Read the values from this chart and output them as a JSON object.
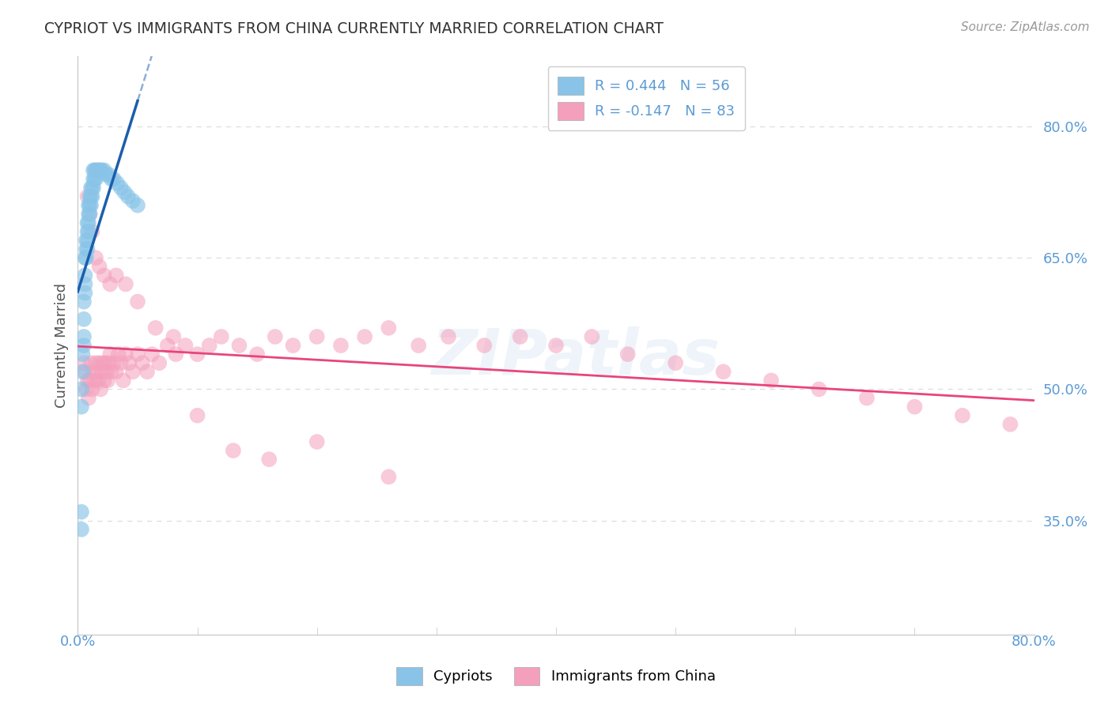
{
  "title": "CYPRIOT VS IMMIGRANTS FROM CHINA CURRENTLY MARRIED CORRELATION CHART",
  "source": "Source: ZipAtlas.com",
  "ylabel": "Currently Married",
  "watermark": "ZIPatlas",
  "xlim": [
    0.0,
    0.8
  ],
  "ylim": [
    0.22,
    0.88
  ],
  "yticks": [
    0.35,
    0.5,
    0.65,
    0.8
  ],
  "ytick_labels": [
    "35.0%",
    "50.0%",
    "65.0%",
    "80.0%"
  ],
  "xtick_positions": [
    0.0,
    0.1,
    0.2,
    0.3,
    0.4,
    0.5,
    0.6,
    0.7,
    0.8
  ],
  "legend_blue_r": "R = 0.444",
  "legend_blue_n": "N = 56",
  "legend_pink_r": "R = -0.147",
  "legend_pink_n": "N = 83",
  "blue_color": "#89C4E8",
  "pink_color": "#F4A0BC",
  "trend_blue_color": "#1B5EAB",
  "trend_pink_color": "#E8457A",
  "grid_color": "#DDDDDD",
  "spine_color": "#CCCCCC",
  "tick_label_color": "#5B9BD5",
  "title_color": "#333333",
  "ylabel_color": "#555555",
  "source_color": "#999999",
  "blue_x": [
    0.003,
    0.003,
    0.004,
    0.004,
    0.005,
    0.005,
    0.005,
    0.005,
    0.006,
    0.006,
    0.006,
    0.006,
    0.007,
    0.007,
    0.007,
    0.008,
    0.008,
    0.008,
    0.008,
    0.009,
    0.009,
    0.009,
    0.009,
    0.01,
    0.01,
    0.01,
    0.011,
    0.011,
    0.011,
    0.012,
    0.012,
    0.013,
    0.013,
    0.013,
    0.014,
    0.014,
    0.015,
    0.015,
    0.016,
    0.017,
    0.018,
    0.019,
    0.02,
    0.022,
    0.024,
    0.026,
    0.028,
    0.03,
    0.033,
    0.036,
    0.039,
    0.042,
    0.046,
    0.05,
    0.003,
    0.003
  ],
  "blue_y": [
    0.48,
    0.5,
    0.52,
    0.54,
    0.55,
    0.56,
    0.58,
    0.6,
    0.61,
    0.62,
    0.63,
    0.65,
    0.65,
    0.66,
    0.67,
    0.66,
    0.67,
    0.68,
    0.69,
    0.68,
    0.69,
    0.7,
    0.71,
    0.7,
    0.71,
    0.72,
    0.71,
    0.72,
    0.73,
    0.72,
    0.73,
    0.73,
    0.74,
    0.75,
    0.74,
    0.75,
    0.74,
    0.75,
    0.75,
    0.75,
    0.75,
    0.75,
    0.75,
    0.75,
    0.745,
    0.745,
    0.74,
    0.74,
    0.735,
    0.73,
    0.725,
    0.72,
    0.715,
    0.71,
    0.36,
    0.34
  ],
  "pink_x": [
    0.005,
    0.006,
    0.007,
    0.008,
    0.009,
    0.01,
    0.011,
    0.012,
    0.013,
    0.014,
    0.015,
    0.016,
    0.017,
    0.018,
    0.019,
    0.02,
    0.021,
    0.022,
    0.023,
    0.024,
    0.025,
    0.026,
    0.027,
    0.028,
    0.03,
    0.032,
    0.034,
    0.036,
    0.038,
    0.04,
    0.043,
    0.046,
    0.05,
    0.054,
    0.058,
    0.062,
    0.068,
    0.075,
    0.082,
    0.09,
    0.1,
    0.11,
    0.12,
    0.135,
    0.15,
    0.165,
    0.18,
    0.2,
    0.22,
    0.24,
    0.26,
    0.285,
    0.31,
    0.34,
    0.37,
    0.4,
    0.43,
    0.46,
    0.5,
    0.54,
    0.58,
    0.62,
    0.66,
    0.7,
    0.74,
    0.78,
    0.008,
    0.01,
    0.012,
    0.015,
    0.018,
    0.022,
    0.027,
    0.032,
    0.04,
    0.05,
    0.065,
    0.08,
    0.1,
    0.13,
    0.16,
    0.2,
    0.26
  ],
  "pink_y": [
    0.53,
    0.52,
    0.5,
    0.51,
    0.49,
    0.51,
    0.53,
    0.5,
    0.52,
    0.51,
    0.53,
    0.52,
    0.51,
    0.53,
    0.5,
    0.52,
    0.53,
    0.51,
    0.53,
    0.52,
    0.51,
    0.53,
    0.54,
    0.52,
    0.53,
    0.52,
    0.54,
    0.53,
    0.51,
    0.54,
    0.53,
    0.52,
    0.54,
    0.53,
    0.52,
    0.54,
    0.53,
    0.55,
    0.54,
    0.55,
    0.54,
    0.55,
    0.56,
    0.55,
    0.54,
    0.56,
    0.55,
    0.56,
    0.55,
    0.56,
    0.57,
    0.55,
    0.56,
    0.55,
    0.56,
    0.55,
    0.56,
    0.54,
    0.53,
    0.52,
    0.51,
    0.5,
    0.49,
    0.48,
    0.47,
    0.46,
    0.72,
    0.7,
    0.68,
    0.65,
    0.64,
    0.63,
    0.62,
    0.63,
    0.62,
    0.6,
    0.57,
    0.56,
    0.47,
    0.43,
    0.42,
    0.44,
    0.4
  ]
}
